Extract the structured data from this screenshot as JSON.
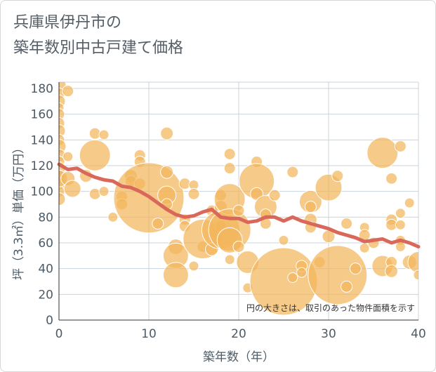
{
  "title_lines": [
    "兵庫県伊丹市の",
    "築年数別中古戸建て価格"
  ],
  "chart_data": {
    "type": "scatter",
    "title": "兵庫県伊丹市の築年数別中古戸建て価格",
    "xlabel": "築年数（年）",
    "ylabel": "坪（3.3㎡）単価（万円）",
    "xlim": [
      0,
      40
    ],
    "ylim": [
      0,
      185
    ],
    "xticks": [
      "0",
      "10",
      "20",
      "30",
      "40"
    ],
    "yticks": [
      "0",
      "20",
      "40",
      "60",
      "80",
      "100",
      "120",
      "140",
      "160",
      "180"
    ],
    "grid": true,
    "note": "円の大きさは、取引のあった物件面積を示す",
    "colors": {
      "bubble": "#f2b65b",
      "bubble_stroke": "#ffffff",
      "trend": "#d9685a",
      "grid": "#c9d3dc",
      "axis": "#333333"
    },
    "bubbles": [
      {
        "x": 0,
        "y": 183,
        "s": 10
      },
      {
        "x": 0,
        "y": 176,
        "s": 8
      },
      {
        "x": 0,
        "y": 170,
        "s": 9
      },
      {
        "x": 0,
        "y": 165,
        "s": 7
      },
      {
        "x": 0,
        "y": 160,
        "s": 8
      },
      {
        "x": 0,
        "y": 153,
        "s": 8
      },
      {
        "x": 0,
        "y": 147,
        "s": 9
      },
      {
        "x": 0,
        "y": 140,
        "s": 8
      },
      {
        "x": 0,
        "y": 135,
        "s": 10
      },
      {
        "x": 0,
        "y": 128,
        "s": 9
      },
      {
        "x": 0,
        "y": 123,
        "s": 8
      },
      {
        "x": 0,
        "y": 118,
        "s": 9
      },
      {
        "x": 0,
        "y": 112,
        "s": 8
      },
      {
        "x": 0,
        "y": 106,
        "s": 9
      },
      {
        "x": 0,
        "y": 100,
        "s": 8
      },
      {
        "x": 0,
        "y": 94,
        "s": 9
      },
      {
        "x": 0,
        "y": 110,
        "s": 12
      },
      {
        "x": 1,
        "y": 178,
        "s": 8
      },
      {
        "x": 1,
        "y": 127,
        "s": 7
      },
      {
        "x": 1,
        "y": 110,
        "s": 10
      },
      {
        "x": 1.5,
        "y": 102,
        "s": 12
      },
      {
        "x": 3,
        "y": 112,
        "s": 9
      },
      {
        "x": 4,
        "y": 145,
        "s": 8
      },
      {
        "x": 4,
        "y": 128,
        "s": 22
      },
      {
        "x": 4,
        "y": 98,
        "s": 8
      },
      {
        "x": 5,
        "y": 144,
        "s": 7
      },
      {
        "x": 5,
        "y": 100,
        "s": 7
      },
      {
        "x": 6,
        "y": 80,
        "s": 7
      },
      {
        "x": 7,
        "y": 96,
        "s": 8
      },
      {
        "x": 7,
        "y": 90,
        "s": 8
      },
      {
        "x": 8,
        "y": 112,
        "s": 9
      },
      {
        "x": 8,
        "y": 108,
        "s": 8
      },
      {
        "x": 9,
        "y": 128,
        "s": 8
      },
      {
        "x": 9,
        "y": 123,
        "s": 8
      },
      {
        "x": 9,
        "y": 106,
        "s": 8
      },
      {
        "x": 10,
        "y": 95,
        "s": 50
      },
      {
        "x": 11,
        "y": 75,
        "s": 8
      },
      {
        "x": 12,
        "y": 145,
        "s": 9
      },
      {
        "x": 12,
        "y": 115,
        "s": 9
      },
      {
        "x": 12,
        "y": 97,
        "s": 13
      },
      {
        "x": 12,
        "y": 90,
        "s": 8
      },
      {
        "x": 13,
        "y": 57,
        "s": 11
      },
      {
        "x": 13,
        "y": 50,
        "s": 18
      },
      {
        "x": 13,
        "y": 35,
        "s": 18
      },
      {
        "x": 14,
        "y": 106,
        "s": 8
      },
      {
        "x": 14,
        "y": 78,
        "s": 8
      },
      {
        "x": 14,
        "y": 73,
        "s": 8
      },
      {
        "x": 15,
        "y": 105,
        "s": 7
      },
      {
        "x": 15,
        "y": 98,
        "s": 8
      },
      {
        "x": 15,
        "y": 42,
        "s": 7
      },
      {
        "x": 16,
        "y": 57,
        "s": 8
      },
      {
        "x": 16,
        "y": 63,
        "s": 28
      },
      {
        "x": 17,
        "y": 85,
        "s": 8
      },
      {
        "x": 17,
        "y": 55,
        "s": 9
      },
      {
        "x": 18,
        "y": 97,
        "s": 8
      },
      {
        "x": 18,
        "y": 88,
        "s": 9
      },
      {
        "x": 18,
        "y": 73,
        "s": 8
      },
      {
        "x": 18,
        "y": 70,
        "s": 27
      },
      {
        "x": 19,
        "y": 129,
        "s": 8
      },
      {
        "x": 19,
        "y": 118,
        "s": 8
      },
      {
        "x": 19,
        "y": 94,
        "s": 22
      },
      {
        "x": 19,
        "y": 70,
        "s": 30
      },
      {
        "x": 19,
        "y": 62,
        "s": 18
      },
      {
        "x": 19,
        "y": 47,
        "s": 7
      },
      {
        "x": 20,
        "y": 85,
        "s": 8
      },
      {
        "x": 20,
        "y": 57,
        "s": 8
      },
      {
        "x": 21,
        "y": 45,
        "s": 16
      },
      {
        "x": 21,
        "y": 25,
        "s": 7
      },
      {
        "x": 22,
        "y": 123,
        "s": 8
      },
      {
        "x": 22,
        "y": 108,
        "s": 25
      },
      {
        "x": 22,
        "y": 98,
        "s": 9
      },
      {
        "x": 23,
        "y": 88,
        "s": 16
      },
      {
        "x": 23,
        "y": 82,
        "s": 8
      },
      {
        "x": 23,
        "y": 75,
        "s": 8
      },
      {
        "x": 24,
        "y": 97,
        "s": 8
      },
      {
        "x": 25,
        "y": 30,
        "s": 48
      },
      {
        "x": 25,
        "y": 62,
        "s": 7
      },
      {
        "x": 26,
        "y": 115,
        "s": 8
      },
      {
        "x": 26,
        "y": 33,
        "s": 7
      },
      {
        "x": 27,
        "y": 42,
        "s": 8
      },
      {
        "x": 27,
        "y": 37,
        "s": 7
      },
      {
        "x": 28,
        "y": 92,
        "s": 16
      },
      {
        "x": 28,
        "y": 88,
        "s": 8
      },
      {
        "x": 28,
        "y": 78,
        "s": 9
      },
      {
        "x": 28,
        "y": 72,
        "s": 8
      },
      {
        "x": 29,
        "y": 45,
        "s": 8
      },
      {
        "x": 30,
        "y": 103,
        "s": 19
      },
      {
        "x": 30,
        "y": 65,
        "s": 9
      },
      {
        "x": 31,
        "y": 112,
        "s": 8
      },
      {
        "x": 31,
        "y": 35,
        "s": 42
      },
      {
        "x": 32,
        "y": 75,
        "s": 8
      },
      {
        "x": 32,
        "y": 26,
        "s": 8
      },
      {
        "x": 33,
        "y": 40,
        "s": 8
      },
      {
        "x": 34,
        "y": 72,
        "s": 7
      },
      {
        "x": 34,
        "y": 66,
        "s": 8
      },
      {
        "x": 34,
        "y": 56,
        "s": 7
      },
      {
        "x": 35,
        "y": 60,
        "s": 8
      },
      {
        "x": 36,
        "y": 130,
        "s": 22
      },
      {
        "x": 36,
        "y": 42,
        "s": 15
      },
      {
        "x": 37,
        "y": 110,
        "s": 8
      },
      {
        "x": 37,
        "y": 78,
        "s": 8
      },
      {
        "x": 37,
        "y": 74,
        "s": 8
      },
      {
        "x": 37,
        "y": 45,
        "s": 8
      },
      {
        "x": 37,
        "y": 38,
        "s": 9
      },
      {
        "x": 38,
        "y": 135,
        "s": 8
      },
      {
        "x": 38,
        "y": 83,
        "s": 7
      },
      {
        "x": 38,
        "y": 74,
        "s": 7
      },
      {
        "x": 38,
        "y": 62,
        "s": 7
      },
      {
        "x": 38,
        "y": 57,
        "s": 7
      },
      {
        "x": 39,
        "y": 91,
        "s": 7
      },
      {
        "x": 39,
        "y": 45,
        "s": 10
      },
      {
        "x": 40,
        "y": 45,
        "s": 15
      },
      {
        "x": 40,
        "y": 35,
        "s": 7
      }
    ],
    "trend": {
      "x": [
        0,
        1,
        2,
        3,
        4,
        5,
        6,
        7,
        8,
        9,
        10,
        11,
        12,
        13,
        14,
        15,
        16,
        17,
        18,
        19,
        20,
        21,
        22,
        23,
        24,
        25,
        26,
        27,
        28,
        29,
        30,
        31,
        32,
        33,
        34,
        35,
        36,
        37,
        38,
        39,
        40
      ],
      "y": [
        121,
        117,
        118,
        114,
        111,
        109,
        108,
        104,
        103,
        100,
        96,
        91,
        86,
        82,
        80,
        81,
        84,
        86,
        80,
        79,
        79,
        76,
        77,
        80,
        80,
        77,
        80,
        77,
        75,
        73,
        71,
        68,
        66,
        64,
        61,
        62,
        63,
        60,
        62,
        60,
        57
      ]
    }
  }
}
